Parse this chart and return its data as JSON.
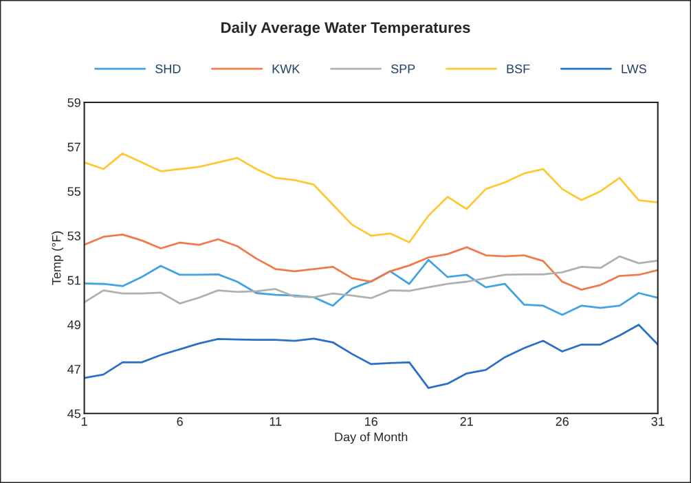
{
  "chart_data": {
    "type": "line",
    "title": "Daily Average Water Temperatures",
    "xlabel": "Day of Month",
    "ylabel": "Temp (°F)",
    "x": [
      1,
      2,
      3,
      4,
      5,
      6,
      7,
      8,
      9,
      10,
      11,
      12,
      13,
      14,
      15,
      16,
      17,
      18,
      19,
      20,
      21,
      22,
      23,
      24,
      25,
      26,
      27,
      28,
      29,
      30,
      31
    ],
    "series": [
      {
        "name": "SHD",
        "color": "#41a3e0",
        "values": [
          50.85,
          50.83,
          50.73,
          51.14,
          51.64,
          51.24,
          51.24,
          51.26,
          50.93,
          50.42,
          50.34,
          50.31,
          50.23,
          49.85,
          50.62,
          50.95,
          51.4,
          50.83,
          51.91,
          51.14,
          51.24,
          50.68,
          50.83,
          49.9,
          49.85,
          49.44,
          49.85,
          49.75,
          49.85,
          50.42,
          50.21
        ]
      },
      {
        "name": "KWK",
        "color": "#f07a4a",
        "values": [
          52.59,
          52.95,
          53.05,
          52.79,
          52.43,
          52.69,
          52.59,
          52.84,
          52.53,
          51.97,
          51.5,
          51.4,
          51.5,
          51.6,
          51.09,
          50.93,
          51.4,
          51.66,
          52.02,
          52.17,
          52.48,
          52.12,
          52.07,
          52.12,
          51.86,
          50.93,
          50.57,
          50.78,
          51.19,
          51.24,
          51.45
        ]
      },
      {
        "name": "SPP",
        "color": "#b0b0b0",
        "values": [
          50.0,
          50.54,
          50.4,
          50.4,
          50.44,
          49.95,
          50.21,
          50.54,
          50.47,
          50.5,
          50.6,
          50.26,
          50.23,
          50.4,
          50.31,
          50.19,
          50.54,
          50.52,
          50.68,
          50.83,
          50.93,
          51.09,
          51.24,
          51.26,
          51.26,
          51.35,
          51.6,
          51.55,
          52.07,
          51.76,
          51.88
        ]
      },
      {
        "name": "BSF",
        "color": "#ffc832",
        "values": [
          56.3,
          56.0,
          56.7,
          56.3,
          55.9,
          56.0,
          56.1,
          56.3,
          56.5,
          56.0,
          55.6,
          55.5,
          55.3,
          54.4,
          53.5,
          53.0,
          53.1,
          52.7,
          53.9,
          54.75,
          54.2,
          55.1,
          55.4,
          55.8,
          56.0,
          55.1,
          54.6,
          55.0,
          55.6,
          54.6,
          54.5
        ]
      },
      {
        "name": "LWS",
        "color": "#2b70c8",
        "values": [
          46.6,
          46.75,
          47.3,
          47.3,
          47.63,
          47.89,
          48.15,
          48.35,
          48.33,
          48.31,
          48.31,
          48.27,
          48.37,
          48.2,
          47.68,
          47.22,
          47.27,
          47.3,
          46.15,
          46.34,
          46.8,
          46.96,
          47.53,
          47.94,
          48.27,
          47.79,
          48.1,
          48.1,
          48.51,
          48.99,
          48.1
        ]
      }
    ],
    "xlim": [
      1,
      31
    ],
    "xticks": [
      1,
      6,
      11,
      16,
      21,
      26,
      31
    ],
    "ylim": [
      45,
      59
    ],
    "yticks": [
      45,
      47,
      49,
      51,
      53,
      55,
      57,
      59
    ],
    "grid": false,
    "legend": "top",
    "marker": "none",
    "line_style": "solid"
  }
}
